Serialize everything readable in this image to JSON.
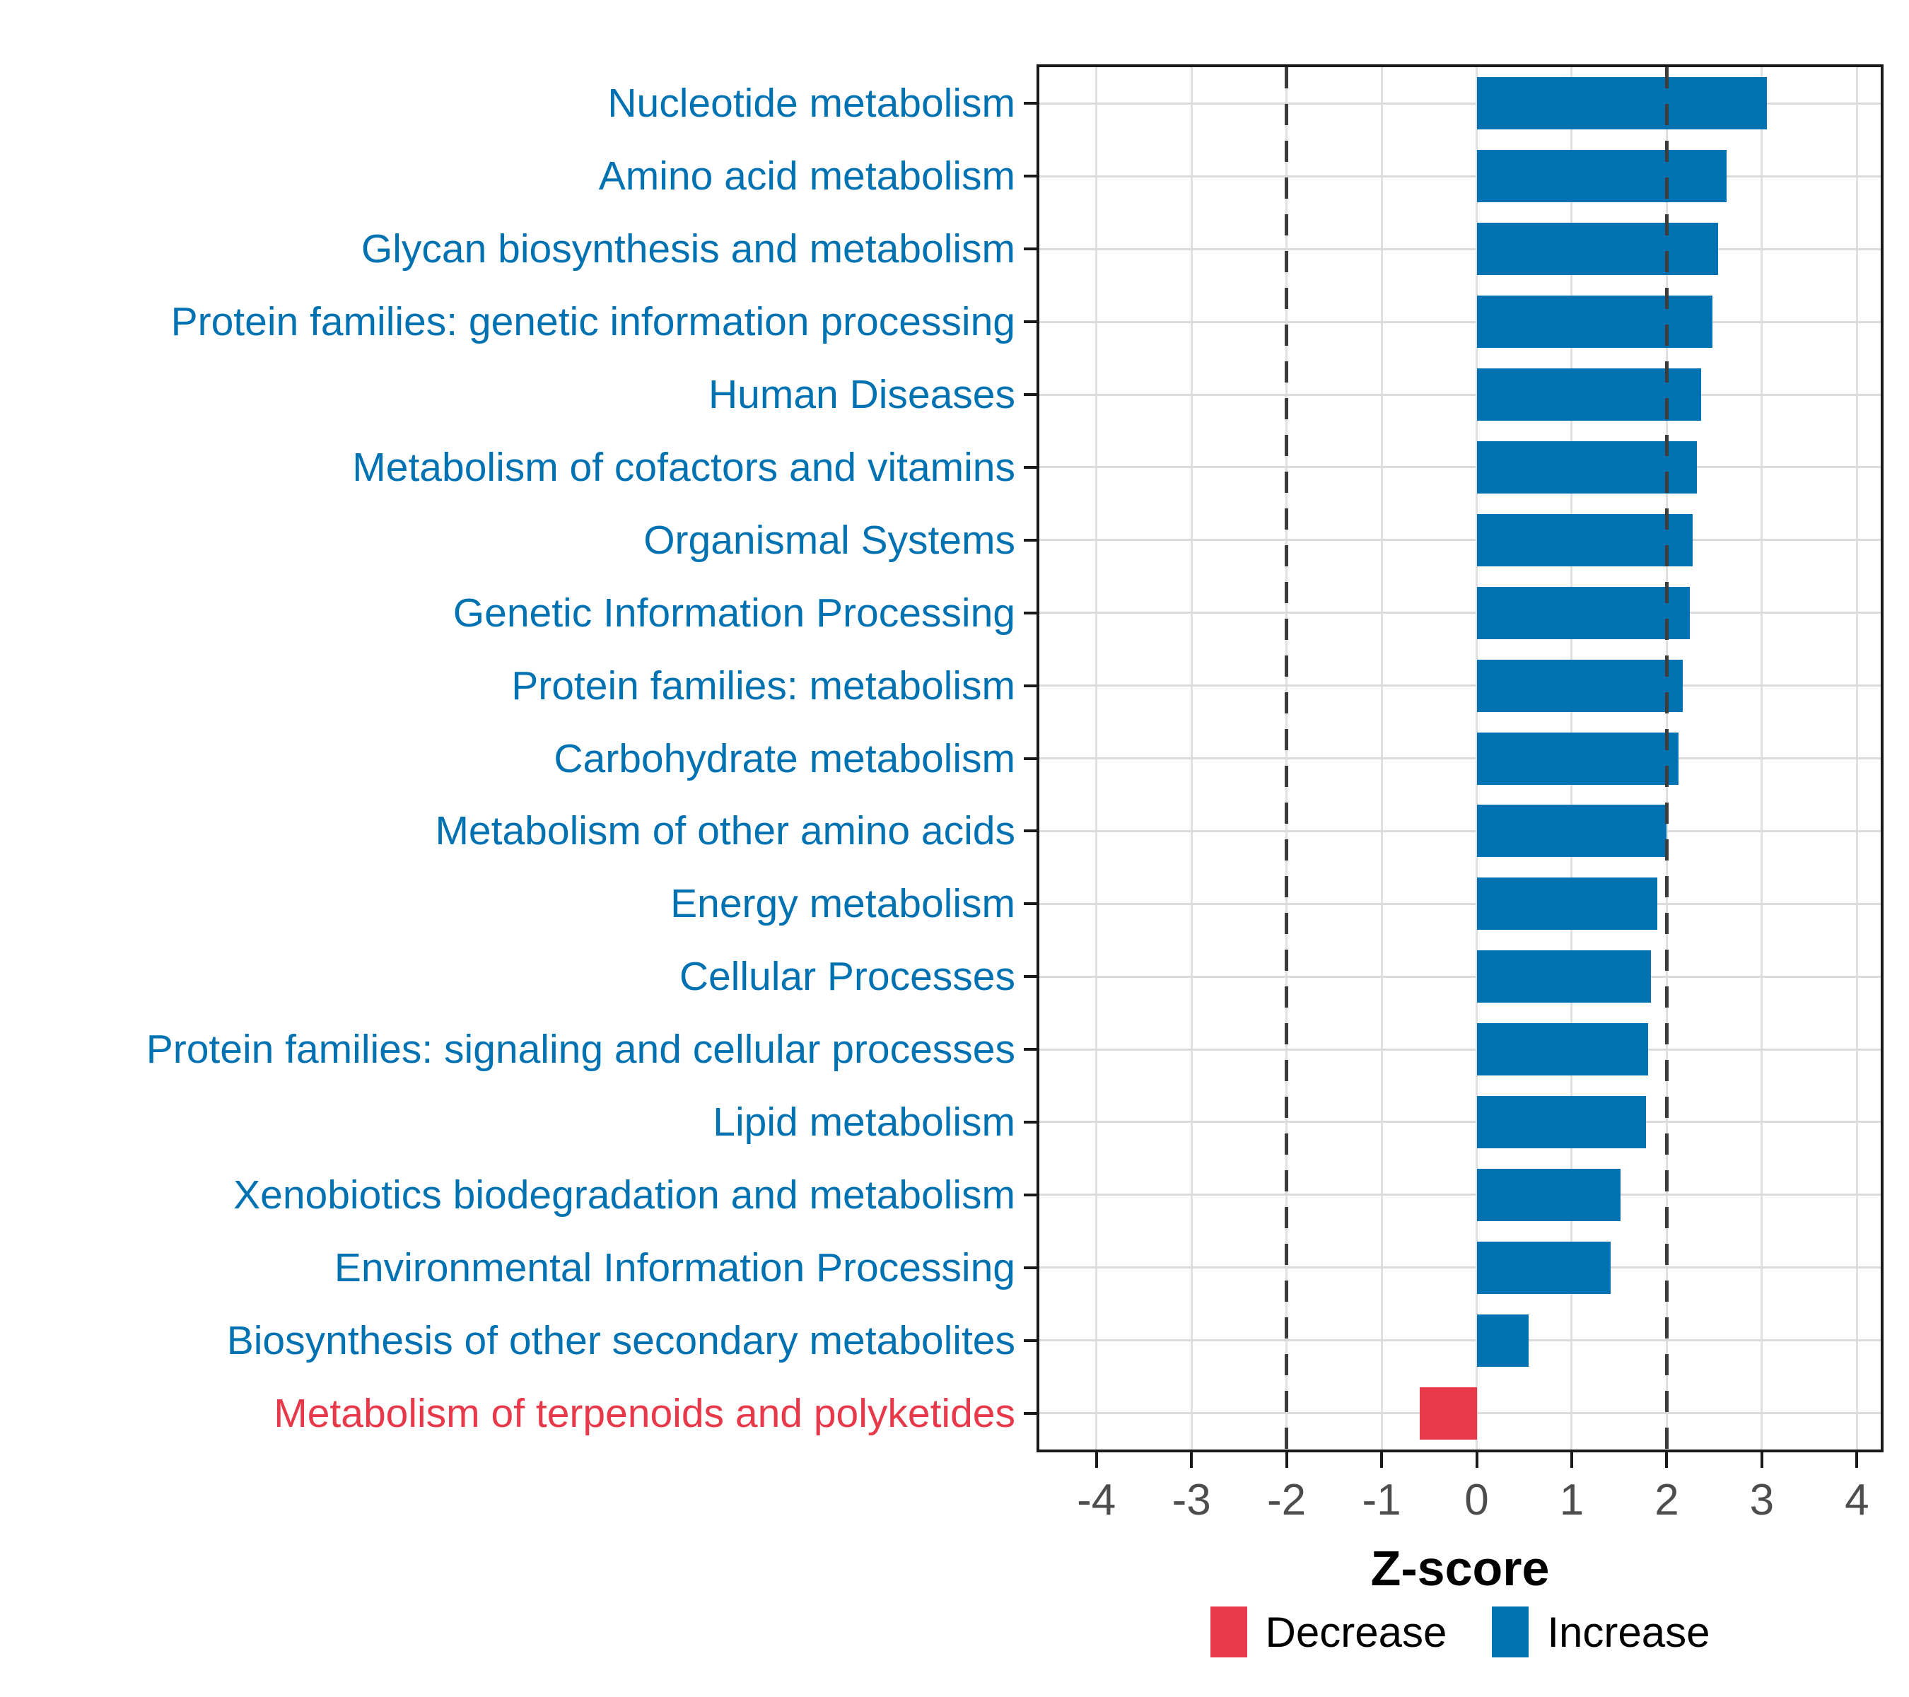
{
  "chart_data": {
    "type": "bar",
    "orientation": "horizontal",
    "title": "",
    "xlabel": "Z-score",
    "ylabel": "",
    "xlim": [
      -4.6,
      4.25
    ],
    "x_ticks": [
      -4,
      -3,
      -2,
      -1,
      0,
      1,
      2,
      3,
      4
    ],
    "threshold_lines": [
      -2,
      2
    ],
    "grid": true,
    "categories": [
      "Nucleotide metabolism",
      "Amino acid metabolism",
      "Glycan biosynthesis and metabolism",
      "Protein families: genetic information processing",
      "Human Diseases",
      "Metabolism of cofactors and vitamins",
      "Organismal Systems",
      "Genetic Information Processing",
      "Protein families: metabolism",
      "Carbohydrate metabolism",
      "Metabolism of other amino acids",
      "Energy metabolism",
      "Cellular Processes",
      "Protein families: signaling and cellular processes",
      "Lipid metabolism",
      "Xenobiotics biodegradation and metabolism",
      "Environmental Information Processing",
      "Biosynthesis of other secondary metabolites",
      "Metabolism of terpenoids and polyketides"
    ],
    "values": [
      3.05,
      2.63,
      2.54,
      2.48,
      2.36,
      2.32,
      2.27,
      2.24,
      2.17,
      2.12,
      2.0,
      1.9,
      1.83,
      1.8,
      1.78,
      1.51,
      1.41,
      0.55,
      -0.6
    ],
    "legend": {
      "position": "bottom",
      "entries": [
        {
          "label": "Decrease",
          "color": "#E8394A"
        },
        {
          "label": "Increase",
          "color": "#0072B2"
        }
      ]
    }
  }
}
